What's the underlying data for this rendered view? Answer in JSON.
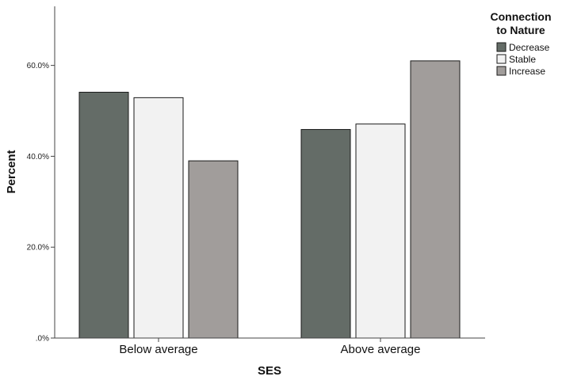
{
  "chart_data": {
    "type": "bar",
    "xlabel": "SES",
    "ylabel": "Percent",
    "categories": [
      "Below average",
      "Above average"
    ],
    "ylim": [
      0,
      73
    ],
    "yticks": [
      0,
      20,
      40,
      60
    ],
    "ytick_labels": [
      ".0%",
      "20.0%",
      "40.0%",
      "60.0%"
    ],
    "grid": false,
    "legend": {
      "title_lines": [
        "Connection",
        "to Nature"
      ],
      "placement": "top-right"
    },
    "series": [
      {
        "name": "Decrease",
        "color": "#646c67",
        "values": [
          54.1,
          45.9
        ]
      },
      {
        "name": "Stable",
        "color": "#f2f2f2",
        "values": [
          52.9,
          47.1
        ]
      },
      {
        "name": "Increase",
        "color": "#a19d9b",
        "values": [
          39.0,
          61.0
        ]
      }
    ]
  }
}
